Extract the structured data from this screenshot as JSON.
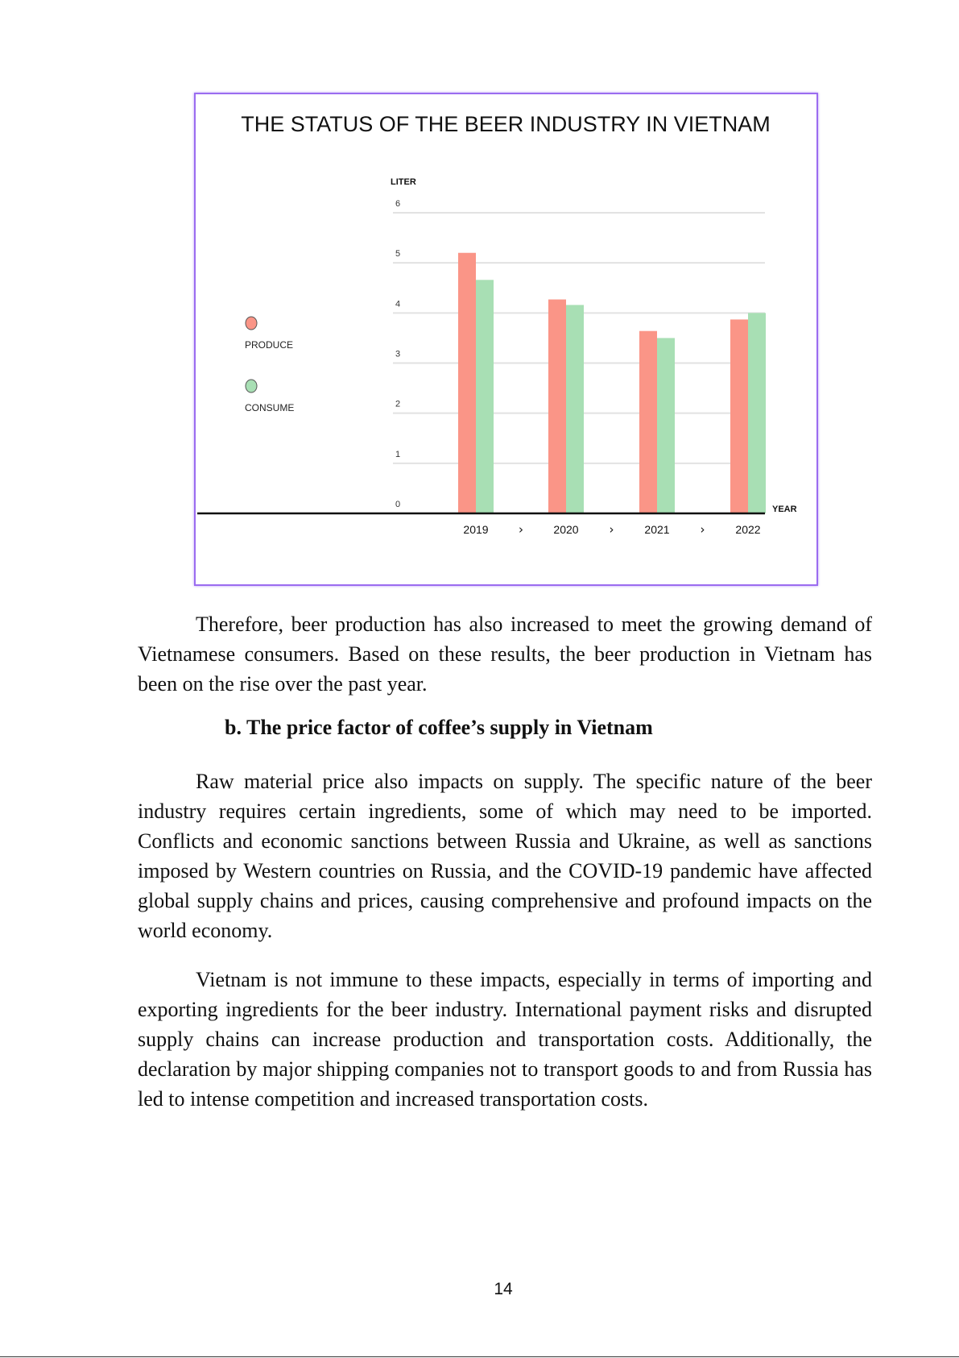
{
  "chart_data": {
    "type": "bar",
    "title": "THE STATUS OF THE BEER INDUSTRY IN VIETNAM",
    "ylabel": "LITER",
    "xlabel": "YEAR",
    "categories": [
      "2019",
      "2020",
      "2021",
      "2022"
    ],
    "category_separator": "›",
    "yticks": [
      "0",
      "1",
      "2",
      "3",
      "4",
      "5",
      "6"
    ],
    "ylim": [
      0,
      6
    ],
    "grid": true,
    "legend_placement": "left",
    "series": [
      {
        "name": "PRODUCE",
        "color": "#fa9587",
        "values": [
          5.2,
          4.27,
          3.64,
          3.87
        ]
      },
      {
        "name": "CONSUME",
        "color": "#a8dfb4",
        "values": [
          4.66,
          4.16,
          3.5,
          4.0
        ]
      }
    ]
  },
  "paragraphs": [
    "Therefore, beer production has also increased to meet the growing demand of Vietnamese consumers. Based on these results, the beer production in Vietnam has been on the rise over the past year.",
    "Raw material price also impacts on supply. The specific nature of the beer industry requires certain ingredients, some of which may need to be imported. Conflicts and economic sanctions between Russia and Ukraine, as well as sanctions imposed by Western countries on Russia, and the COVID-19 pandemic have affected global supply chains and prices, causing comprehensive and profound impacts on the world economy.",
    "Vietnam is not immune to these impacts, especially in terms of importing and exporting ingredients for the beer industry. International payment risks and disrupted supply chains can increase production and transportation costs. Additionally, the declaration by major shipping companies not to transport goods to and from Russia has led to intense competition and increased transportation costs."
  ],
  "heading": "b. The price factor of coffee’s supply in Vietnam",
  "page_number": "14"
}
